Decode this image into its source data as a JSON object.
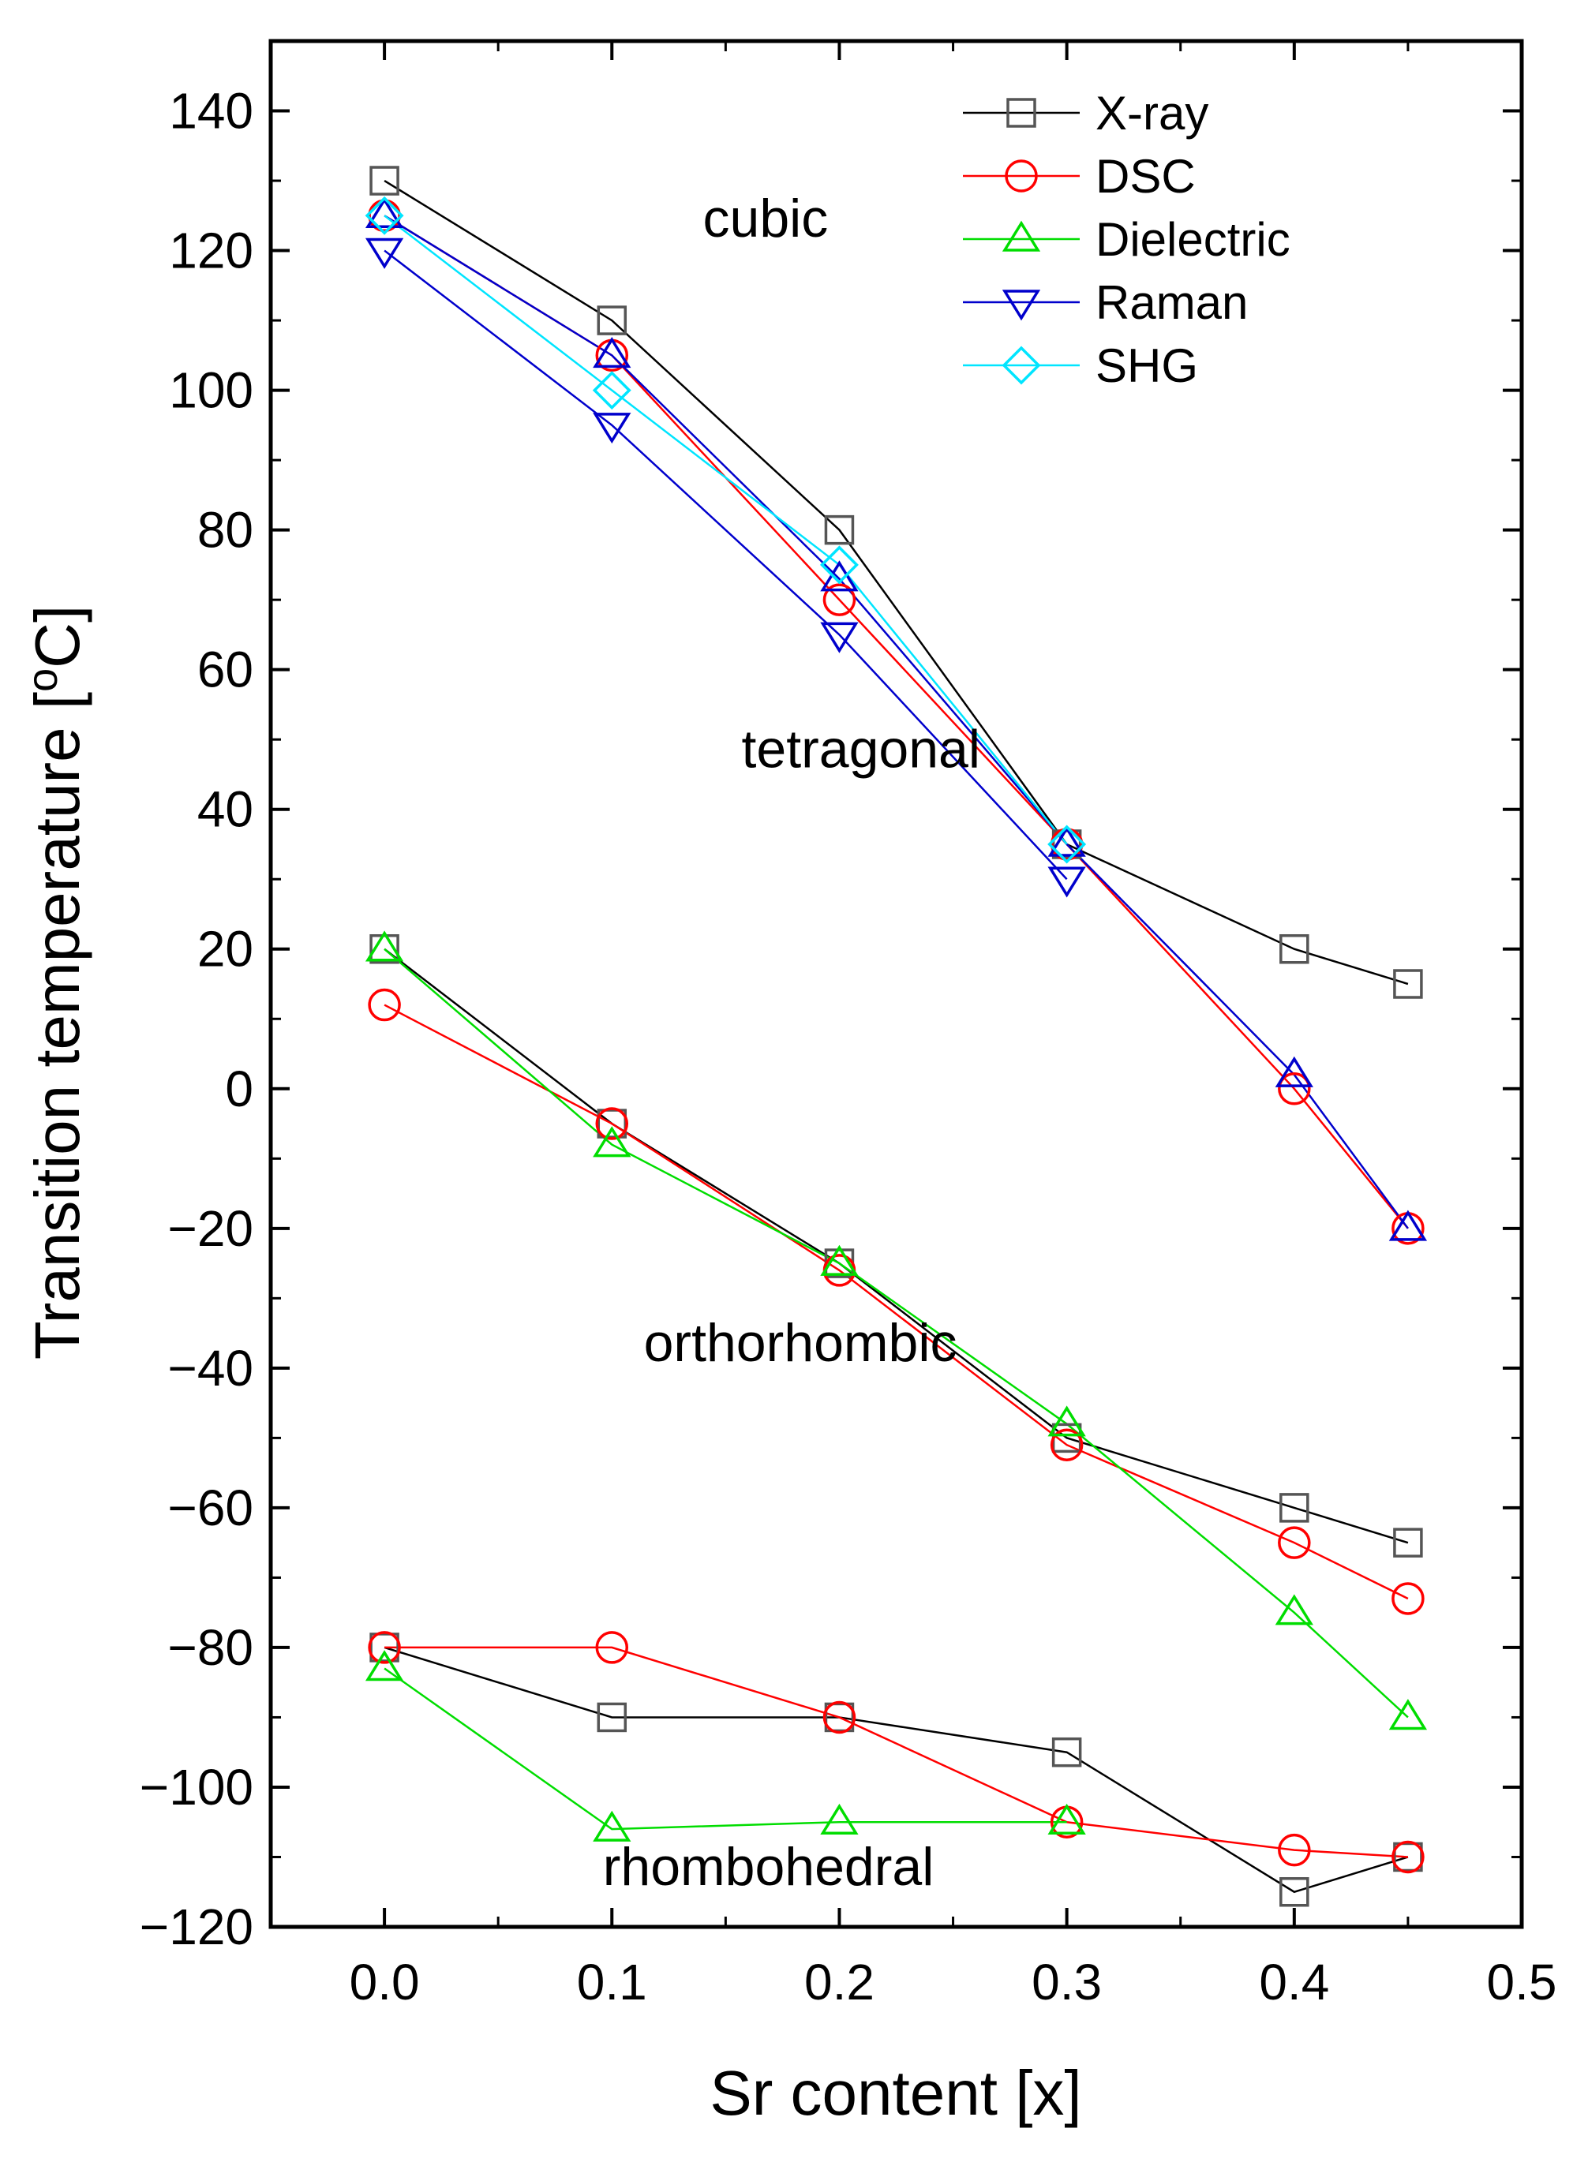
{
  "chart_data": {
    "type": "line",
    "title": "",
    "xlabel": "Sr content [x]",
    "ylabel_parts": {
      "pre": "Transition temperature [",
      "sup": "o",
      "post": "C]"
    },
    "xlim": [
      -0.05,
      0.5
    ],
    "ylim": [
      -120,
      150
    ],
    "xticks": [
      0.0,
      0.1,
      0.2,
      0.3,
      0.4,
      0.5
    ],
    "xtick_labels": [
      "0.0",
      "0.1",
      "0.2",
      "0.3",
      "0.4",
      "0.5"
    ],
    "yticks": [
      -120,
      -100,
      -80,
      -60,
      -40,
      -20,
      0,
      20,
      40,
      60,
      80,
      100,
      120,
      140
    ],
    "ytick_labels": [
      "−120",
      "−100",
      "−80",
      "−60",
      "−40",
      "−20",
      "0",
      "20",
      "40",
      "60",
      "80",
      "100",
      "120",
      "140"
    ],
    "grid": false,
    "legend_position": "top-right",
    "region_labels": [
      {
        "text": "cubic",
        "x": 0.14,
        "y": 122
      },
      {
        "text": "tetragonal",
        "x": 0.157,
        "y": 46
      },
      {
        "text": "orthorhombic",
        "x": 0.114,
        "y": -39
      },
      {
        "text": "rhombohedral",
        "x": 0.096,
        "y": -114
      }
    ],
    "series": [
      {
        "name": "X-ray",
        "color": "#000000",
        "marker": "square",
        "marker_color": "#555555",
        "segments": [
          {
            "x": [
              0.0,
              0.1,
              0.2,
              0.3,
              0.4,
              0.45
            ],
            "y": [
              130,
              110,
              80,
              35,
              20,
              15
            ]
          },
          {
            "x": [
              0.0,
              0.1,
              0.2,
              0.3,
              0.4,
              0.45
            ],
            "y": [
              20,
              -5,
              -25,
              -50,
              -60,
              -65
            ]
          },
          {
            "x": [
              0.0,
              0.1,
              0.2,
              0.3,
              0.4,
              0.45
            ],
            "y": [
              -80,
              -90,
              -90,
              -95,
              -115,
              -110
            ]
          }
        ]
      },
      {
        "name": "DSC",
        "color": "#ff0000",
        "marker": "circle",
        "marker_color": "#ff0000",
        "segments": [
          {
            "x": [
              0.0,
              0.1,
              0.2,
              0.3,
              0.4,
              0.45
            ],
            "y": [
              125,
              105,
              70,
              35,
              0,
              -20
            ]
          },
          {
            "x": [
              0.0,
              0.1,
              0.2,
              0.3,
              0.4,
              0.45
            ],
            "y": [
              12,
              -5,
              -26,
              -51,
              -65,
              -73
            ]
          },
          {
            "x": [
              0.0,
              0.1,
              0.2,
              0.3,
              0.4,
              0.45
            ],
            "y": [
              -80,
              -80,
              -90,
              -105,
              -109,
              -110
            ]
          }
        ]
      },
      {
        "name": "Dielectric",
        "color": "#00dd00",
        "marker": "triangle-up",
        "marker_color": "#00dd00",
        "segments": [
          {
            "x": [
              0.0,
              0.1,
              0.2,
              0.3,
              0.4,
              0.45
            ],
            "y": [
              20,
              -8,
              -25,
              -48,
              -75,
              -90
            ]
          },
          {
            "x": [
              0.0,
              0.1,
              0.2,
              0.3
            ],
            "y": [
              -83,
              -106,
              -105,
              -105
            ]
          }
        ]
      },
      {
        "name": "Raman",
        "color": "#0000cc",
        "marker": "triangle-down",
        "marker_color": "#0000cc",
        "segments": [
          {
            "x": [
              0.0,
              0.1,
              0.2,
              0.3
            ],
            "y": [
              120,
              95,
              65,
              30
            ]
          },
          {
            "x": [
              0.0,
              0.1,
              0.2,
              0.3,
              0.4,
              0.45
            ],
            "y": [
              125,
              105,
              73,
              35,
              2,
              -20
            ],
            "marker": "triangle-up"
          }
        ]
      },
      {
        "name": "SHG",
        "color": "#00e5ff",
        "marker": "diamond",
        "marker_color": "#00e5ff",
        "segments": [
          {
            "x": [
              0.0,
              0.1,
              0.2,
              0.3
            ],
            "y": [
              125,
              100,
              75,
              35
            ]
          }
        ]
      }
    ]
  }
}
